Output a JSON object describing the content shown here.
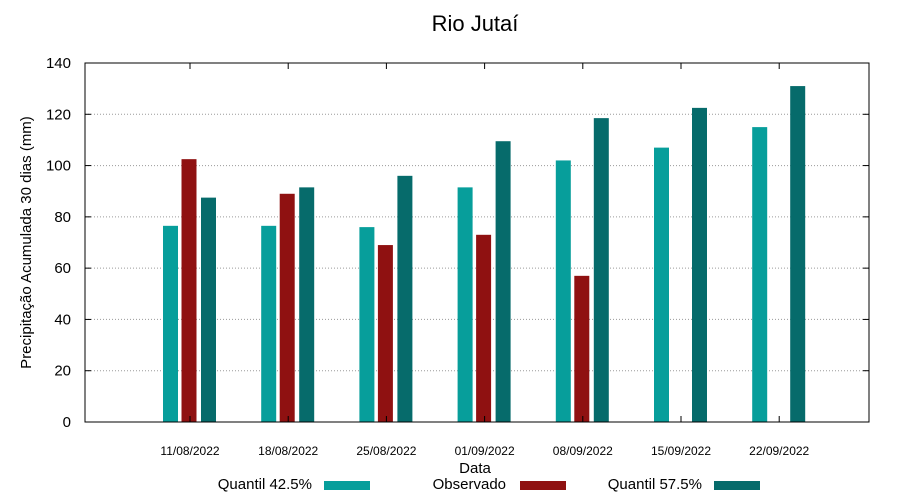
{
  "chart_data": {
    "type": "bar",
    "title": "Rio Jutaí",
    "xlabel": "Data",
    "ylabel": "Precipitação Acumulada 30 dias (mm)",
    "ylim": [
      0,
      140
    ],
    "yticks": [
      0,
      20,
      40,
      60,
      80,
      100,
      120,
      140
    ],
    "grid": true,
    "legend_position": "bottom",
    "categories": [
      "11/08/2022",
      "18/08/2022",
      "25/08/2022",
      "01/09/2022",
      "08/09/2022",
      "15/09/2022",
      "22/09/2022"
    ],
    "series": [
      {
        "name": "Quantil 42.5%",
        "color": "#079e9b",
        "values": [
          76.5,
          76.5,
          76,
          91.5,
          102,
          107,
          115
        ]
      },
      {
        "name": "Observado",
        "color": "#8f1111",
        "values": [
          102.5,
          89,
          69,
          73,
          57,
          null,
          null
        ]
      },
      {
        "name": "Quantil 57.5%",
        "color": "#066b6b",
        "values": [
          87.5,
          91.5,
          96,
          109.5,
          118.5,
          122.5,
          131
        ]
      }
    ]
  }
}
